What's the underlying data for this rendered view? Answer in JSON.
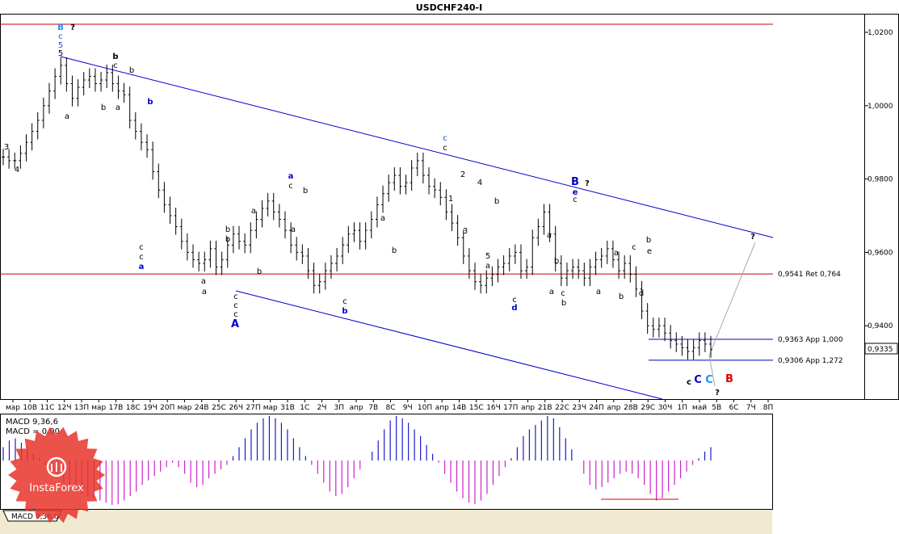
{
  "chart_data": {
    "type": "ohlc",
    "title": "USDCHF240-I",
    "symbol": "USDCHF240-I",
    "y_axis": {
      "ticks": [
        "1,0200",
        "1,0000",
        "0,9800",
        "0,9600",
        "0,9400"
      ],
      "tick_values": [
        1.02,
        1.0,
        0.98,
        0.96,
        0.94
      ],
      "ylim": [
        0.9215,
        1.0225
      ],
      "current_price_label": "0,9335",
      "current_price": 0.9335
    },
    "x_axis": {
      "ticks": [
        "мар",
        "10В",
        "11С",
        "12Ч",
        "13П",
        "мар",
        "17В",
        "18С",
        "19Ч",
        "20П",
        "мар",
        "24В",
        "25С",
        "26Ч",
        "27П",
        "мар",
        "31В",
        "1С",
        "2Ч",
        "3П",
        "апр",
        "7В",
        "8С",
        "9Ч",
        "10П",
        "апр",
        "14В",
        "15С",
        "16Ч",
        "17П",
        "апр",
        "21В",
        "22С",
        "23Ч",
        "24П",
        "апр",
        "28В",
        "29С",
        "30Ч",
        "1П",
        "май",
        "5В",
        "6С",
        "7Ч",
        "8П"
      ]
    },
    "series": [
      {
        "values": [
          0.986,
          0.985,
          0.985,
          0.987,
          0.99,
          0.993,
          0.996,
          1.0,
          1.004,
          1.008,
          1.011,
          1.006,
          1.002,
          1.005,
          1.007,
          1.008,
          1.006,
          1.007,
          1.009,
          1.006,
          1.004,
          1.003,
          0.996,
          0.993,
          0.99,
          0.988,
          0.982,
          0.977,
          0.973,
          0.97,
          0.967,
          0.963,
          0.96,
          0.958,
          0.957,
          0.958,
          0.961,
          0.956,
          0.958,
          0.962,
          0.965,
          0.963,
          0.962,
          0.966,
          0.969,
          0.972,
          0.974,
          0.971,
          0.969,
          0.966,
          0.962,
          0.96,
          0.959,
          0.955,
          0.951,
          0.952,
          0.955,
          0.957,
          0.959,
          0.962,
          0.965,
          0.966,
          0.963,
          0.966,
          0.969,
          0.973,
          0.976,
          0.979,
          0.981,
          0.978,
          0.979,
          0.983,
          0.985,
          0.981,
          0.978,
          0.977,
          0.975,
          0.971,
          0.968,
          0.964,
          0.959,
          0.955,
          0.952,
          0.951,
          0.953,
          0.954,
          0.956,
          0.957,
          0.959,
          0.96,
          0.955,
          0.956,
          0.964,
          0.967,
          0.971,
          0.965,
          0.957,
          0.953,
          0.955,
          0.956,
          0.955,
          0.953,
          0.956,
          0.958,
          0.959,
          0.961,
          0.958,
          0.955,
          0.957,
          0.954,
          0.95,
          0.944,
          0.94,
          0.939,
          0.94,
          0.938,
          0.936,
          0.935,
          0.934,
          0.933,
          0.934,
          0.936,
          0.935,
          0.9335
        ]
      }
    ],
    "horizontal_lines": [
      {
        "price": 1.0222,
        "color": "#cc0000",
        "label": ""
      },
      {
        "price": 0.9541,
        "color": "#cc0000",
        "label": "0,9541 Ret 0,764"
      },
      {
        "price": 0.9363,
        "color": "#0000cc",
        "label": "0,9363 App 1,000"
      },
      {
        "price": 0.9306,
        "color": "#0000cc",
        "label": "0,9306 App 1,272"
      }
    ],
    "wave_labels": [
      {
        "text": "B",
        "color": "#1e90ff"
      },
      {
        "text": "?",
        "color": "#000000"
      },
      {
        "text": "c",
        "color": "#1e4fd0"
      },
      {
        "text": "5",
        "color": "#1e4fd0"
      },
      {
        "text": "5",
        "color": "#000000"
      },
      {
        "text": "3",
        "color": "#000000"
      },
      {
        "text": "4",
        "color": "#000000"
      },
      {
        "text": "a",
        "color": "#000000"
      },
      {
        "text": "b",
        "color": "#000000"
      },
      {
        "text": "c",
        "color": "#000000"
      },
      {
        "text": "b",
        "color": "#000000"
      },
      {
        "text": "a",
        "color": "#000000"
      },
      {
        "text": "b",
        "color": "#000000"
      },
      {
        "text": "b",
        "color": "#0000cc"
      },
      {
        "text": "c",
        "color": "#000000"
      },
      {
        "text": "c",
        "color": "#000000"
      },
      {
        "text": "a",
        "color": "#0000cc"
      },
      {
        "text": "a",
        "color": "#000000"
      },
      {
        "text": "a",
        "color": "#000000"
      },
      {
        "text": "b",
        "color": "#000000"
      },
      {
        "text": "b",
        "color": "#000000"
      },
      {
        "text": "c",
        "color": "#000000"
      },
      {
        "text": "c",
        "color": "#000000"
      },
      {
        "text": "c",
        "color": "#000000"
      },
      {
        "text": "A",
        "color": "#0000cc"
      },
      {
        "text": "a",
        "color": "#000000"
      },
      {
        "text": "b",
        "color": "#000000"
      },
      {
        "text": "a",
        "color": "#0000cc"
      },
      {
        "text": "c",
        "color": "#000000"
      },
      {
        "text": "b",
        "color": "#000000"
      },
      {
        "text": "a",
        "color": "#000000"
      },
      {
        "text": "c",
        "color": "#000000"
      },
      {
        "text": "b",
        "color": "#0000cc"
      },
      {
        "text": "a",
        "color": "#000000"
      },
      {
        "text": "b",
        "color": "#000000"
      },
      {
        "text": "c",
        "color": "#1e4fd0"
      },
      {
        "text": "c",
        "color": "#000000"
      },
      {
        "text": "2",
        "color": "#000000"
      },
      {
        "text": "1",
        "color": "#000000"
      },
      {
        "text": "4",
        "color": "#000000"
      },
      {
        "text": "3",
        "color": "#000000"
      },
      {
        "text": "b",
        "color": "#000000"
      },
      {
        "text": "5",
        "color": "#000000"
      },
      {
        "text": "a",
        "color": "#000000"
      },
      {
        "text": "c",
        "color": "#000000"
      },
      {
        "text": "d",
        "color": "#0000cc"
      },
      {
        "text": "a",
        "color": "#000000"
      },
      {
        "text": "b",
        "color": "#000000"
      },
      {
        "text": "a",
        "color": "#000000"
      },
      {
        "text": "c",
        "color": "#000000"
      },
      {
        "text": "b",
        "color": "#000000"
      },
      {
        "text": "B",
        "color": "#0000cc"
      },
      {
        "text": "?",
        "color": "#000000"
      },
      {
        "text": "e",
        "color": "#0000cc"
      },
      {
        "text": "c",
        "color": "#000000"
      },
      {
        "text": "a",
        "color": "#000000"
      },
      {
        "text": "a",
        "color": "#000000"
      },
      {
        "text": "b",
        "color": "#000000"
      },
      {
        "text": "c",
        "color": "#000000"
      },
      {
        "text": "b",
        "color": "#000000"
      },
      {
        "text": "e",
        "color": "#000000"
      },
      {
        "text": "d",
        "color": "#000000"
      },
      {
        "text": "c",
        "color": "#000000"
      },
      {
        "text": "C",
        "color": "#0000cc"
      },
      {
        "text": "C",
        "color": "#1e90ff"
      },
      {
        "text": "B",
        "color": "#e00000"
      },
      {
        "text": "?",
        "color": "#000000"
      },
      {
        "text": "?",
        "color": "#000000"
      }
    ],
    "macd": {
      "label": "MACD 9,36,6",
      "value_label": "MACD = 0,00",
      "tab_label": "MACD 9,36,6",
      "positive_color": "#1a1acc",
      "negative_color": "#cc22cc",
      "values": [
        0.3,
        0.45,
        0.5,
        0.4,
        0.25,
        0.15,
        0.05,
        -0.1,
        -0.2,
        -0.35,
        -0.5,
        -0.6,
        -0.7,
        -0.75,
        -0.8,
        -0.85,
        -0.9,
        -0.95,
        -1.0,
        -0.98,
        -0.9,
        -0.8,
        -0.7,
        -0.55,
        -0.45,
        -0.35,
        -0.25,
        -0.15,
        -0.05,
        -0.15,
        -0.3,
        -0.5,
        -0.6,
        -0.55,
        -0.4,
        -0.3,
        -0.2,
        -0.1,
        0.1,
        0.3,
        0.5,
        0.7,
        0.85,
        0.95,
        1.0,
        0.95,
        0.85,
        0.7,
        0.5,
        0.3,
        0.1,
        -0.1,
        -0.3,
        -0.5,
        -0.7,
        -0.8,
        -0.75,
        -0.6,
        -0.4,
        -0.2,
        0.0,
        0.2,
        0.45,
        0.7,
        0.9,
        1.0,
        0.95,
        0.85,
        0.7,
        0.55,
        0.35,
        0.15,
        -0.05,
        -0.3,
        -0.5,
        -0.7,
        -0.85,
        -0.95,
        -0.98,
        -0.9,
        -0.75,
        -0.55,
        -0.35,
        -0.15,
        0.05,
        0.3,
        0.55,
        0.7,
        0.8,
        0.9,
        1.0,
        0.95,
        0.75,
        0.5,
        0.25,
        0.0,
        -0.3,
        -0.55,
        -0.65,
        -0.6,
        -0.5,
        -0.4,
        -0.3,
        -0.25,
        -0.3,
        -0.4,
        -0.55,
        -0.75,
        -0.9,
        -0.85,
        -0.7,
        -0.55,
        -0.4,
        -0.25,
        -0.1,
        0.05,
        0.2,
        0.3
      ]
    }
  },
  "watermark": {
    "brand": "InstaForex"
  }
}
